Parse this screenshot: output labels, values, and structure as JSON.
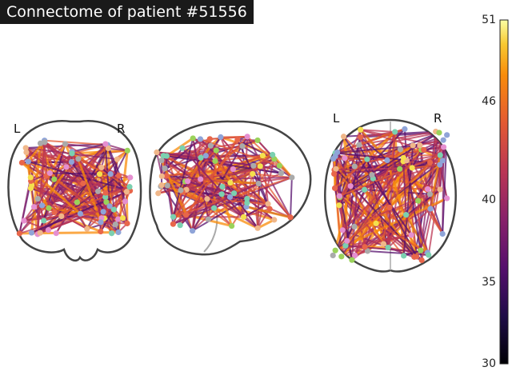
{
  "title": "Connectome of patient #51556",
  "hemisphere_labels": {
    "coronal_left": "L",
    "coronal_right": "R",
    "axial_left": "L",
    "axial_right": "R"
  },
  "colorbar": {
    "colormap": "inferno",
    "min": 30,
    "max": 51,
    "tick_labels": [
      "51",
      "46",
      "40",
      "35",
      "30"
    ],
    "tick_values": [
      51,
      46,
      40,
      35,
      30
    ]
  },
  "colors": {
    "edge_high": "#f98c0a",
    "edge_mid": "#bc3754",
    "edge_low": "#57106e",
    "node_palette": [
      "#f4e04d",
      "#9ad25a",
      "#7bd0b0",
      "#8fa4d8",
      "#e58fd0",
      "#f0b78a",
      "#e8664a",
      "#aaaaaa"
    ]
  },
  "views": [
    "coronal-view",
    "sagittal-view",
    "axial-view"
  ]
}
